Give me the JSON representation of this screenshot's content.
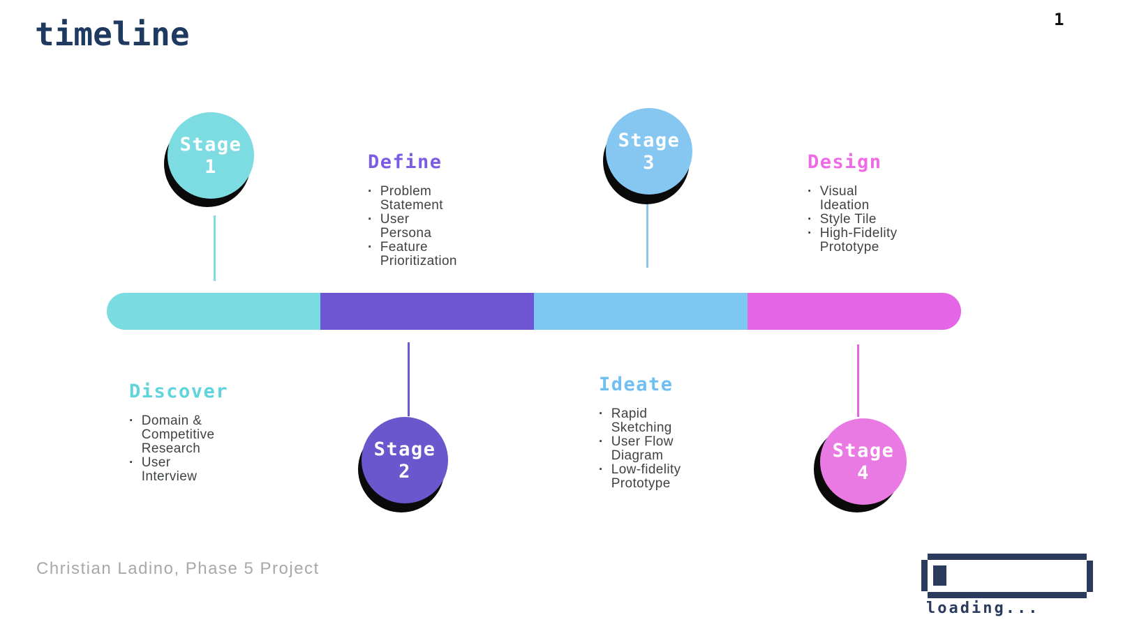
{
  "header": {
    "title": "timeline",
    "page_number": "1"
  },
  "footer": {
    "credit": "Christian Ladino, Phase 5 Project"
  },
  "loading": {
    "label": "loading...",
    "progress_percent": 8
  },
  "palette": {
    "teal": "#7adce0",
    "purple": "#6e55d2",
    "blue": "#7cc8f2",
    "magenta": "#e466e6",
    "navy": "#1f3a60",
    "body_text": "#3e4245",
    "footer_gray": "#a8a8a8",
    "shadow_black": "#0a0a0a"
  },
  "timeline": {
    "segments": [
      {
        "name": "Discover",
        "color": "#7adce0"
      },
      {
        "name": "Define",
        "color": "#6e55d2"
      },
      {
        "name": "Ideate",
        "color": "#7cc8f2"
      },
      {
        "name": "Design",
        "color": "#e466e6"
      }
    ]
  },
  "stages": [
    {
      "label": "Stage",
      "number": "1",
      "heading": "Discover",
      "heading_color": "#5fd4db",
      "circle_color": "#7cdce1",
      "position": "above-bar",
      "items": [
        "Domain &\nCompetitive\nResearch",
        "User\nInterview"
      ]
    },
    {
      "label": "Stage",
      "number": "2",
      "heading": "Define",
      "heading_color": "#7b5ce2",
      "circle_color": "#6a56cd",
      "position": "below-bar",
      "items": [
        "Problem\nStatement",
        "User\nPersona",
        "Feature\nPrioritization"
      ]
    },
    {
      "label": "Stage",
      "number": "3",
      "heading": "Ideate",
      "heading_color": "#6fbff2",
      "circle_color": "#85c7f1",
      "position": "above-bar",
      "items": [
        "Rapid\nSketching",
        "User Flow\nDiagram",
        "Low-fidelity\nPrototype"
      ]
    },
    {
      "label": "Stage",
      "number": "4",
      "heading": "Design",
      "heading_color": "#ef6ae4",
      "circle_color": "#ea7ae3",
      "position": "below-bar",
      "items": [
        "Visual\nIdeation",
        "Style Tile",
        "High-Fidelity\nPrototype"
      ]
    }
  ]
}
